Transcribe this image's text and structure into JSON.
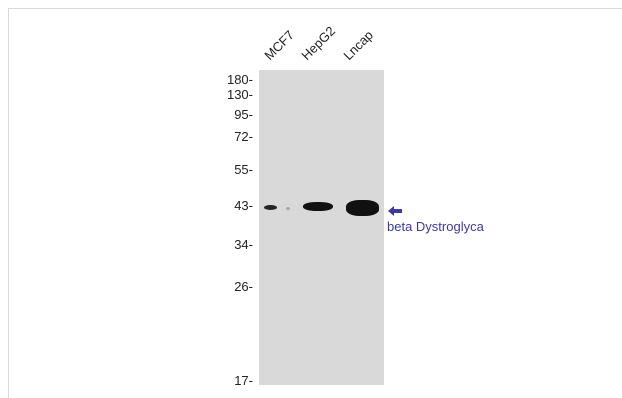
{
  "lanes": [
    "MCF7",
    "HepG2",
    "Lncap"
  ],
  "mw_markers": [
    "180-",
    "130-",
    "95-",
    "72-",
    "55-",
    "43-",
    "34-",
    "26-",
    "17-"
  ],
  "target": {
    "label": "beta Dystroglyca",
    "arrow_color": "#3d3a9e"
  },
  "colors": {
    "membrane": "#d9d9d9",
    "band": "#111111",
    "label": "#3d3a9e"
  }
}
